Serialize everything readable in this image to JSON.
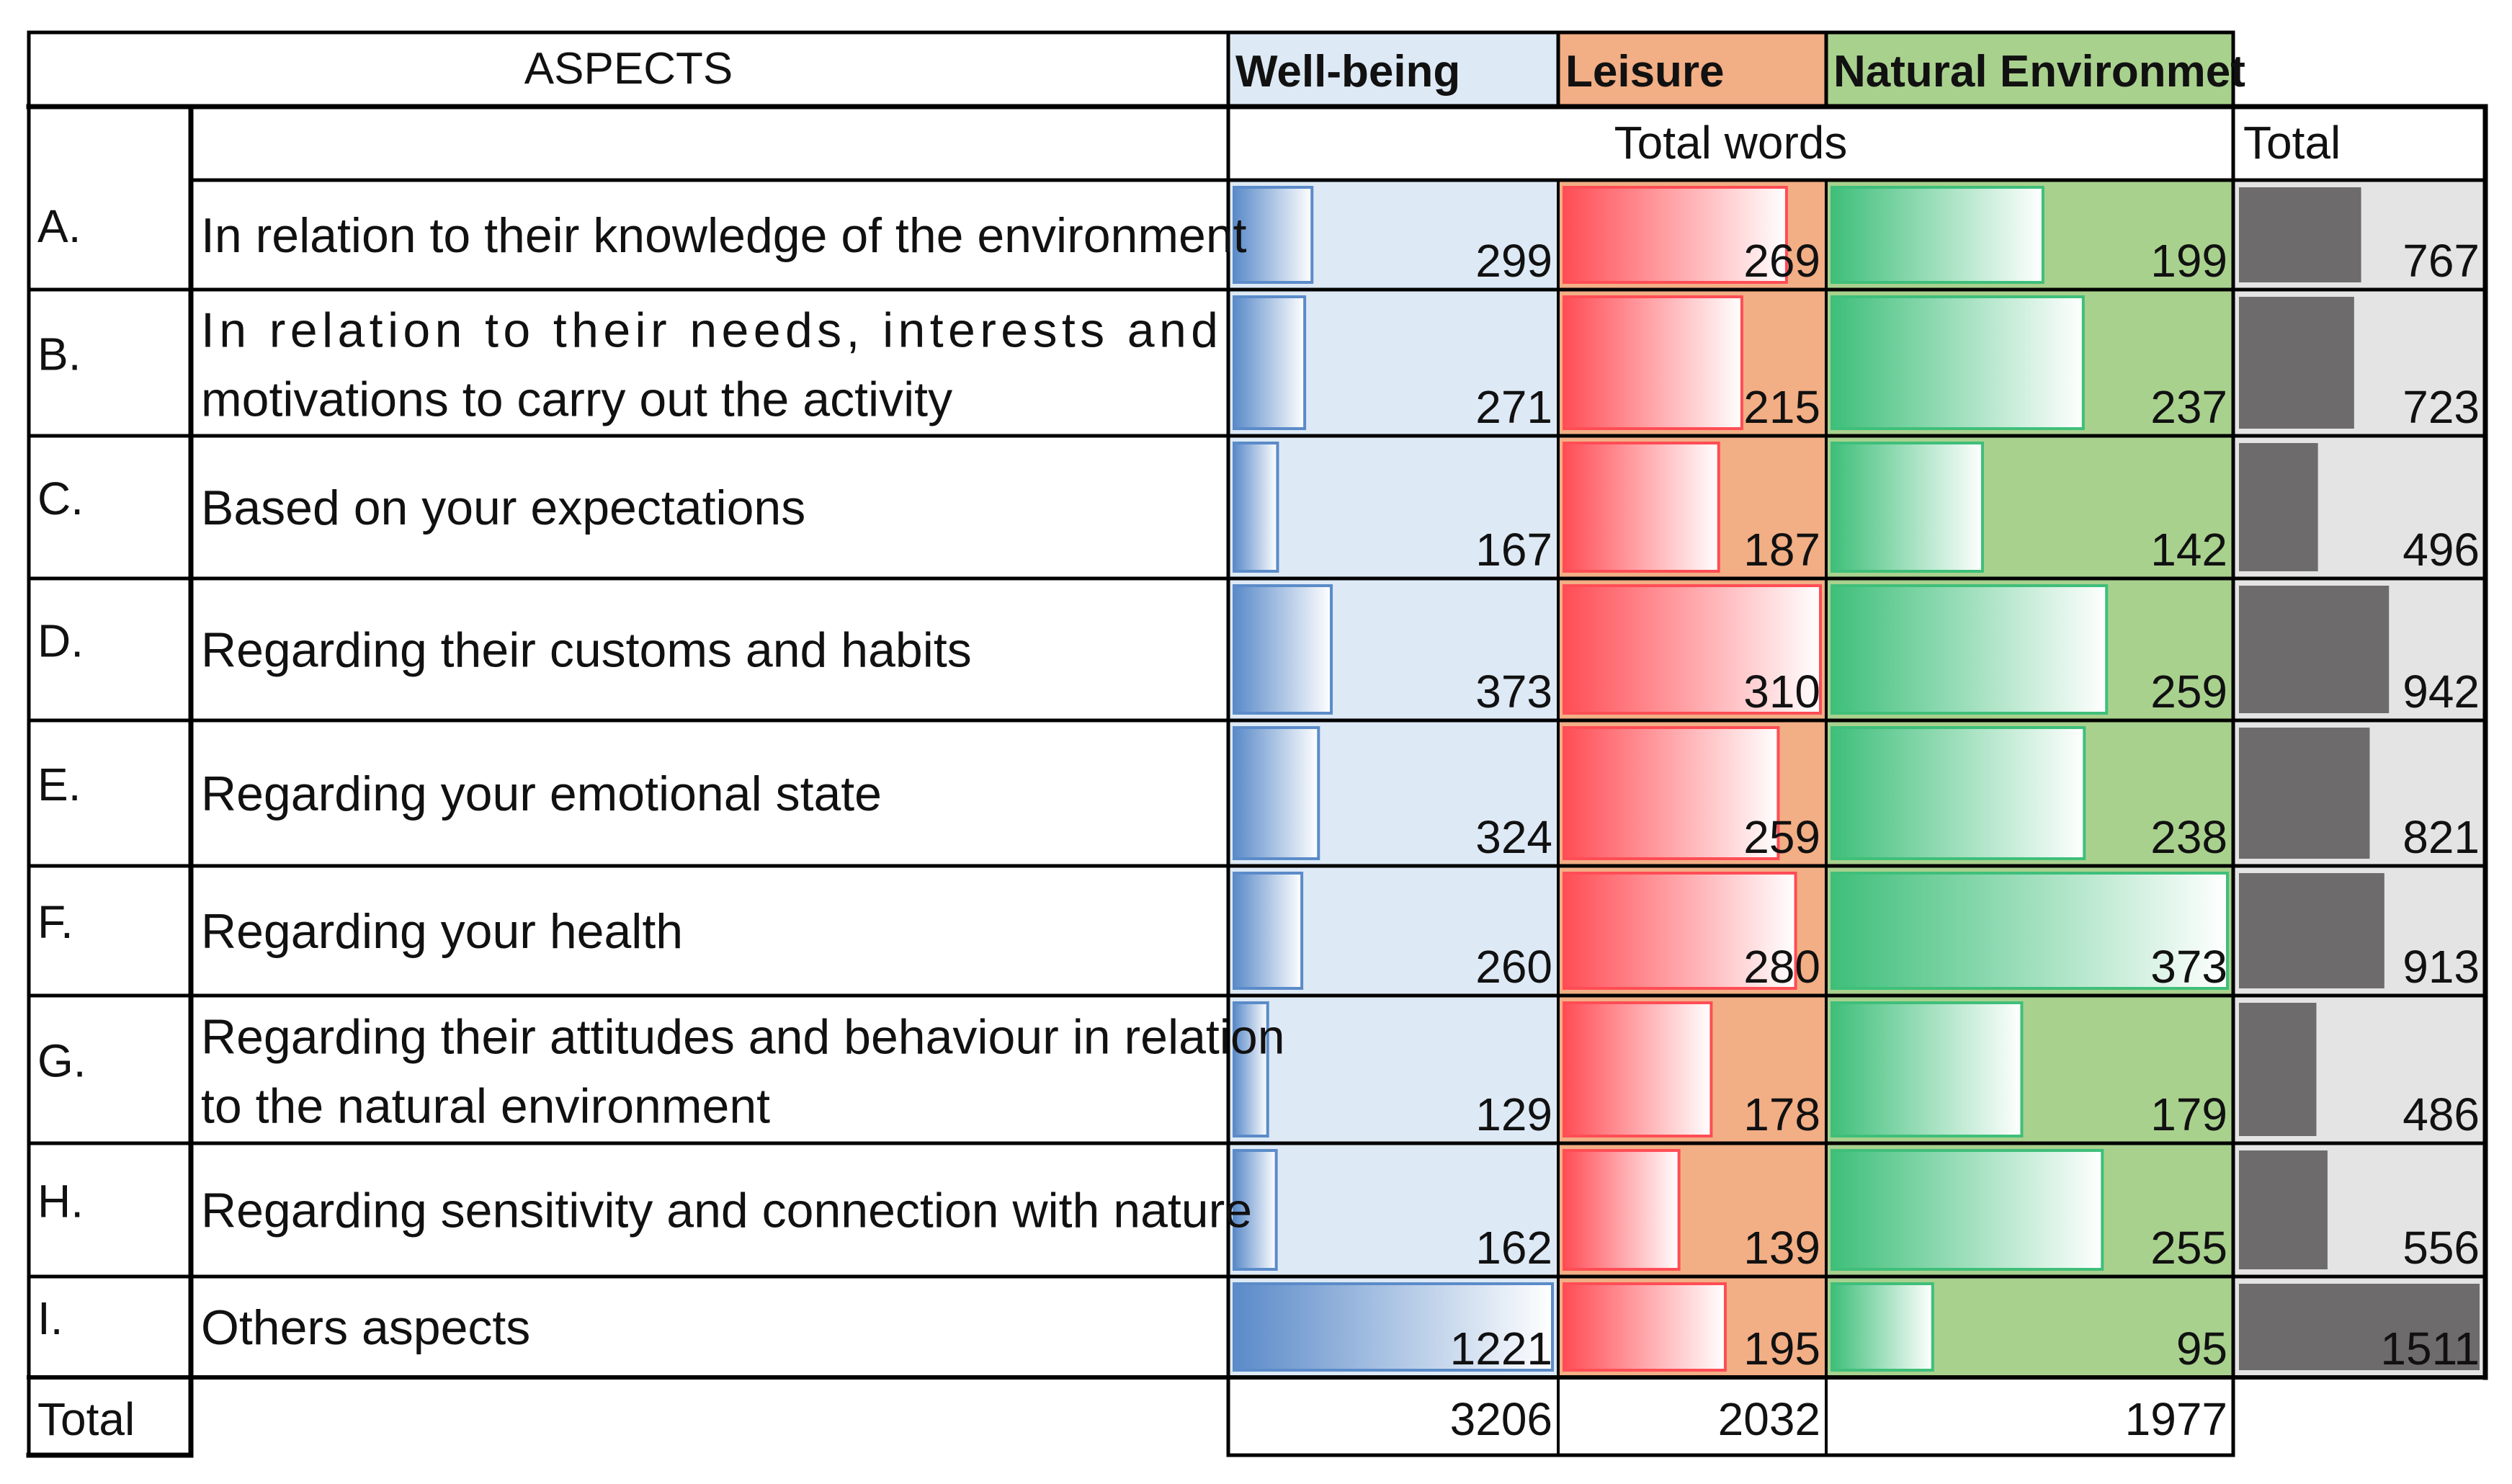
{
  "chart_data": {
    "type": "table",
    "header": {
      "aspects_label": "ASPECTS",
      "series_labels": [
        "Well-being",
        "Leisure",
        "Natural Environmet"
      ],
      "total_words_label": "Total words",
      "total_label": "Total"
    },
    "rows": [
      {
        "letter": "A.",
        "lines": [
          "In relation to their knowledge of the environment"
        ],
        "values": [
          299,
          269,
          199
        ],
        "total": 767
      },
      {
        "letter": "B.",
        "lines": [
          "In relation to their needs, interests and",
          "motivations to carry out the activity"
        ],
        "values": [
          271,
          215,
          237
        ],
        "total": 723
      },
      {
        "letter": "C.",
        "lines": [
          "Based on your expectations"
        ],
        "values": [
          167,
          187,
          142
        ],
        "total": 496
      },
      {
        "letter": "D.",
        "lines": [
          "Regarding their customs and habits"
        ],
        "values": [
          373,
          310,
          259
        ],
        "total": 942
      },
      {
        "letter": "E.",
        "lines": [
          "Regarding your emotional state"
        ],
        "values": [
          324,
          259,
          238
        ],
        "total": 821
      },
      {
        "letter": "F.",
        "lines": [
          "Regarding your health"
        ],
        "values": [
          260,
          280,
          373
        ],
        "total": 913
      },
      {
        "letter": "G.",
        "lines": [
          "Regarding their attitudes and behaviour in relation",
          "to the natural environment"
        ],
        "values": [
          129,
          178,
          179
        ],
        "total": 486
      },
      {
        "letter": "H.",
        "lines": [
          "Regarding sensitivity and connection with nature"
        ],
        "values": [
          162,
          139,
          255
        ],
        "total": 556
      },
      {
        "letter": "I.",
        "lines": [
          "Others aspects"
        ],
        "values": [
          1221,
          195,
          95
        ],
        "total": 1511
      }
    ],
    "footer": {
      "label": "Total",
      "values": [
        3206,
        2032,
        1977
      ]
    },
    "colors": {
      "wellbeing_bg": "#dde9f5",
      "wellbeing_bar": "#5b8bc9",
      "leisure_bg": "#f2ae85",
      "leisure_bar": "#ff4d55",
      "nature_bg": "#a9d18e",
      "nature_bar": "#3fbf7a",
      "total_bg": "#e4e4e4",
      "total_bar": "#6d6b6b"
    }
  }
}
